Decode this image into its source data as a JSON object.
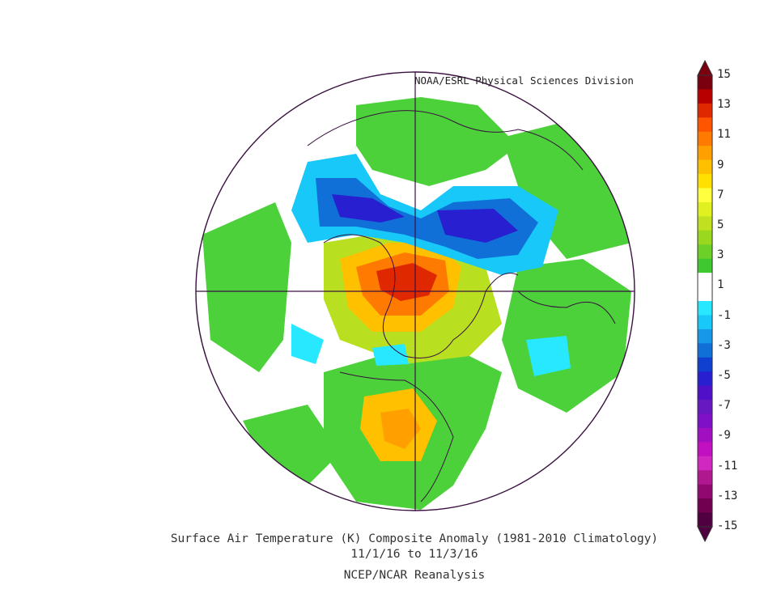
{
  "credit": "NOAA/ESRL Physical Sciences Division",
  "caption": {
    "line1": "Surface Air Temperature (K) Composite Anomaly (1981-2010 Climatology)",
    "line2": "11/1/16  to 11/3/16",
    "line3": "NCEP/NCAR Reanalysis"
  },
  "colorbar": {
    "labels": [
      "15",
      "13",
      "11",
      "9",
      "7",
      "5",
      "3",
      "1",
      "-1",
      "-3",
      "-5",
      "-7",
      "-9",
      "-11",
      "-13",
      "-15"
    ],
    "colors": [
      "#7a0010",
      "#b80000",
      "#e02800",
      "#ff5500",
      "#ff7a00",
      "#ffa000",
      "#ffc000",
      "#ffe000",
      "#ffff40",
      "#e0f020",
      "#c0e020",
      "#9ad820",
      "#6cd028",
      "#40c830",
      "#ffffff",
      "#ffffff",
      "#28e8ff",
      "#18c8f8",
      "#1898e8",
      "#1070d8",
      "#1040d0",
      "#2820d0",
      "#5010c8",
      "#6818c0",
      "#8010c8",
      "#a010c0",
      "#c010c0",
      "#d028c0",
      "#b01890",
      "#900870",
      "#700050",
      "#500040"
    ]
  }
}
